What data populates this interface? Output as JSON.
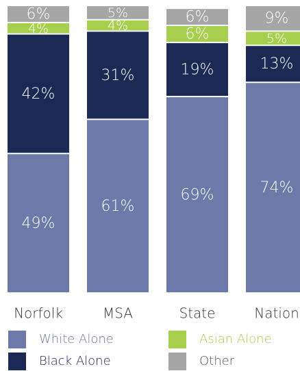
{
  "chart_data": {
    "type": "stacked_bar",
    "categories": [
      "Norfolk",
      "MSA",
      "State",
      "Nation"
    ],
    "series": [
      {
        "name": "White Alone",
        "color": "#6b7aa8",
        "values": [
          49,
          61,
          69,
          74
        ],
        "value_labels": [
          "49%",
          "61%",
          "69%",
          "74%"
        ]
      },
      {
        "name": "Black Alone",
        "color": "#1b2a55",
        "values": [
          42,
          31,
          19,
          13
        ],
        "value_labels": [
          "42%",
          "31%",
          "19%",
          "13%"
        ]
      },
      {
        "name": "Asian Alone",
        "color": "#a5cf4c",
        "values": [
          4,
          4,
          6,
          5
        ],
        "value_labels": [
          "4%",
          "4%",
          "6%",
          "5%"
        ]
      },
      {
        "name": "Other",
        "color": "#a6a6a6",
        "values": [
          6,
          5,
          6,
          9
        ],
        "value_labels": [
          "6%",
          "5%",
          "6%",
          "9%"
        ]
      }
    ],
    "ylim": [
      0,
      101
    ]
  }
}
